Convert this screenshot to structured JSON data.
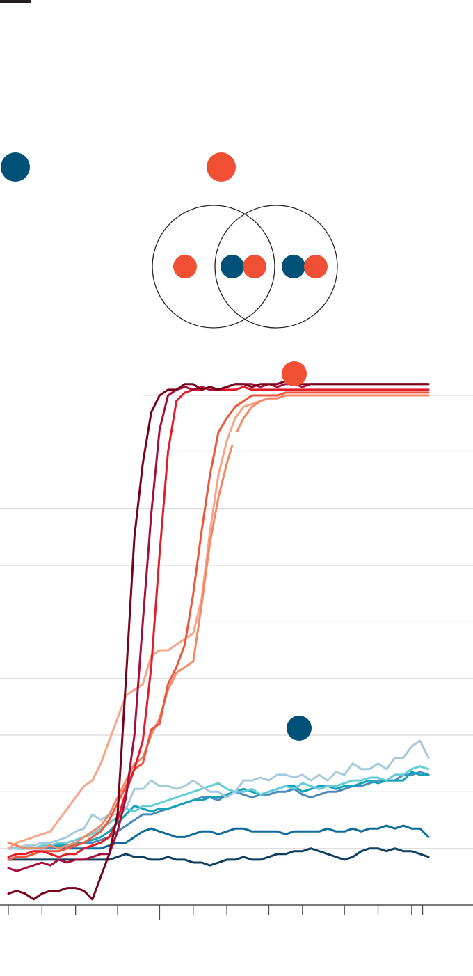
{
  "colors": {
    "blue_marker": "#005177",
    "red_marker": "#ef4f33",
    "rule": "#231f20",
    "grid": "#d9d9d9",
    "axis": "#4d4d4d",
    "venn_stroke": "#222222"
  },
  "chart_data": {
    "type": "line",
    "title": "",
    "xlabel": "",
    "ylabel": "",
    "grid": true,
    "legend": "none",
    "x": [
      0,
      1,
      2,
      3,
      4,
      5,
      6,
      7,
      8,
      9,
      10,
      11,
      12,
      13,
      14,
      15,
      16,
      17,
      18,
      19,
      20,
      21,
      22,
      23,
      24,
      25,
      26,
      27,
      28,
      29,
      30,
      31,
      32,
      33,
      34,
      35,
      36,
      37,
      38,
      39,
      40,
      41,
      42,
      43,
      44,
      45,
      46,
      47,
      48,
      49,
      50
    ],
    "ylim": [
      0,
      9
    ],
    "series": [
      {
        "color": "#7b001c",
        "values": [
          0.2,
          0.25,
          0.2,
          0.1,
          0.2,
          0.25,
          0.25,
          0.3,
          0.3,
          0.25,
          0.1,
          0.5,
          0.9,
          1.6,
          4,
          6.5,
          7.8,
          8.7,
          9.0,
          9.1,
          9.1,
          9.2,
          9.2,
          9.1,
          9.15,
          9.1,
          9.15,
          9.2,
          9.2,
          9.15,
          9.2,
          9.2,
          9.2,
          9.25,
          9.2,
          9.2,
          9.2,
          9.2,
          9.2,
          9.2,
          9.2,
          9.2,
          9.2,
          9.2,
          9.2,
          9.2,
          9.2,
          9.2,
          9.2,
          9.2,
          9.2
        ]
      },
      {
        "color": "#a50f3b",
        "values": [
          0.65,
          0.6,
          0.65,
          0.7,
          0.75,
          0.7,
          0.8,
          0.75,
          0.8,
          0.8,
          0.85,
          0.9,
          0.9,
          1.3,
          1.9,
          3.0,
          5.0,
          6.9,
          8.4,
          9.0,
          9.1,
          9.15,
          9.1,
          9.15,
          9.1,
          9.1,
          9.15,
          9.2,
          9.2,
          9.2,
          9.15,
          9.2,
          9.15,
          9.2,
          9.2,
          9.15,
          9.2,
          9.2,
          9.2,
          9.2,
          9.2,
          9.2,
          9.2,
          9.2,
          9.2,
          9.2,
          9.2,
          9.2,
          9.2,
          9.2,
          9.2
        ]
      },
      {
        "color": "#e31c2b",
        "values": [
          0.85,
          0.9,
          0.9,
          0.95,
          0.95,
          0.9,
          0.85,
          0.9,
          0.9,
          1.0,
          1.05,
          1.1,
          1.2,
          1.5,
          2.0,
          2.4,
          2.9,
          4.2,
          6.2,
          8.0,
          8.9,
          9.05,
          9.1,
          9.1,
          9.15,
          9.1,
          9.1,
          9.1,
          9.15,
          9.1,
          9.1,
          9.1,
          9.1,
          9.1,
          9.1,
          9.1,
          9.1,
          9.1,
          9.1,
          9.1,
          9.1,
          9.1,
          9.1,
          9.1,
          9.1,
          9.1,
          9.1,
          9.1,
          9.1,
          9.1,
          9.1
        ]
      },
      {
        "color": "#f0553c",
        "values": [
          0.8,
          0.85,
          0.85,
          0.9,
          0.95,
          0.95,
          0.95,
          1.0,
          1.05,
          1.1,
          1.2,
          1.3,
          1.5,
          1.8,
          2.1,
          2.4,
          2.5,
          3.1,
          3.2,
          3.9,
          4.2,
          4.6,
          5.5,
          6.6,
          7.6,
          8.35,
          8.6,
          8.8,
          8.9,
          9.0,
          9.0,
          9.0,
          9.0,
          9.05,
          9.05,
          9.05,
          9.05,
          9.05,
          9.05,
          9.05,
          9.05,
          9.05,
          9.05,
          9.05,
          9.05,
          9.05,
          9.05,
          9.05,
          9.05,
          9.05,
          9.05
        ]
      },
      {
        "color": "#f58766",
        "values": [
          1.1,
          1.05,
          1.0,
          1.0,
          1.0,
          1.05,
          1.0,
          1.05,
          1.1,
          1.2,
          1.3,
          1.4,
          1.6,
          1.9,
          2.2,
          2.5,
          2.6,
          3.0,
          3.3,
          3.8,
          4.1,
          4.2,
          4.3,
          5.3,
          6.4,
          7.2,
          7.8,
          8.3,
          8.6,
          8.8,
          8.9,
          8.95,
          8.95,
          9.0,
          9.0,
          9.0,
          9.0,
          9.0,
          9.0,
          9.0,
          9.0,
          9.0,
          9.0,
          9.0,
          9.0,
          9.0,
          9.0,
          9.0,
          9.0,
          9.0,
          9.0
        ]
      },
      {
        "color": "#f8a487",
        "values": [
          1.0,
          1.1,
          1.15,
          1.2,
          1.25,
          1.3,
          1.5,
          1.7,
          1.9,
          2.1,
          2.2,
          2.5,
          2.9,
          3.3,
          3.7,
          3.8,
          3.9,
          4.4,
          4.5,
          4.5,
          4.6,
          4.7,
          4.8,
          5.4,
          6.6,
          7.6,
          8.2,
          8.6,
          8.8,
          8.85,
          8.9,
          8.95,
          8.95,
          9.0,
          9.0,
          9.0,
          9.0,
          9.0,
          9.0,
          9.0,
          9.0,
          9.0,
          9.0,
          9.0,
          9.0,
          9.0,
          9.0,
          9.0,
          9.0,
          9.0,
          9.0
        ]
      },
      {
        "color": "#a7c9dd",
        "values": [
          1.0,
          1.0,
          1.05,
          1.05,
          1.1,
          1.1,
          1.15,
          1.2,
          1.3,
          1.35,
          1.6,
          1.5,
          1.6,
          1.6,
          1.7,
          2.05,
          2.05,
          2.2,
          2.1,
          2.1,
          2.05,
          2.1,
          2.2,
          2.1,
          2.0,
          2.0,
          1.9,
          2.0,
          2.2,
          2.2,
          2.25,
          2.2,
          2.3,
          2.3,
          2.25,
          2.3,
          2.2,
          2.3,
          2.2,
          2.35,
          2.3,
          2.5,
          2.4,
          2.4,
          2.5,
          2.4,
          2.6,
          2.6,
          2.8,
          2.9,
          2.6
        ]
      },
      {
        "color": "#66ccd8",
        "values": [
          1.0,
          1.0,
          1.0,
          1.0,
          1.05,
          1.05,
          1.1,
          1.1,
          1.15,
          1.2,
          1.25,
          1.35,
          1.45,
          1.55,
          1.7,
          1.65,
          1.75,
          1.75,
          1.8,
          1.85,
          1.9,
          1.95,
          2.0,
          2.05,
          2.1,
          2.15,
          2.05,
          2.0,
          2.0,
          2.05,
          1.95,
          2.0,
          2.05,
          2.1,
          2.05,
          2.15,
          2.1,
          2.05,
          2.1,
          2.1,
          2.15,
          2.2,
          2.2,
          2.25,
          2.25,
          2.2,
          2.3,
          2.3,
          2.4,
          2.45,
          2.4
        ]
      },
      {
        "color": "#14a3b6",
        "values": [
          1.0,
          1.0,
          1.0,
          1.0,
          1.0,
          1.05,
          1.05,
          1.05,
          1.1,
          1.1,
          1.15,
          1.2,
          1.3,
          1.45,
          1.6,
          1.75,
          1.7,
          1.65,
          1.7,
          1.7,
          1.75,
          1.8,
          1.85,
          1.85,
          1.9,
          1.9,
          1.95,
          2.0,
          2.05,
          2.0,
          1.95,
          2.0,
          2.05,
          2.1,
          2.1,
          2.0,
          2.05,
          2.1,
          2.1,
          2.05,
          2.1,
          2.1,
          2.15,
          2.2,
          2.15,
          2.2,
          2.2,
          2.2,
          2.35,
          2.3,
          2.3
        ]
      },
      {
        "color": "#4a8ab8",
        "values": [
          1.0,
          1.0,
          1.0,
          1.0,
          1.0,
          1.0,
          1.05,
          1.05,
          1.05,
          1.1,
          1.1,
          1.15,
          1.2,
          1.3,
          1.4,
          1.5,
          1.6,
          1.6,
          1.65,
          1.7,
          1.75,
          1.8,
          1.85,
          1.9,
          1.9,
          1.85,
          1.95,
          2.0,
          1.95,
          1.9,
          1.95,
          1.95,
          2.0,
          2.0,
          2.05,
          1.95,
          1.9,
          1.95,
          2.0,
          2.0,
          2.05,
          2.1,
          2.1,
          2.15,
          2.2,
          2.2,
          2.2,
          2.3,
          2.3,
          2.35,
          2.3
        ]
      },
      {
        "color": "#0e6b99",
        "values": [
          1.0,
          1.0,
          1.0,
          1.0,
          1.0,
          1.0,
          1.0,
          1.0,
          1.0,
          1.0,
          1.0,
          1.0,
          1.05,
          1.1,
          1.1,
          1.2,
          1.3,
          1.35,
          1.3,
          1.25,
          1.2,
          1.2,
          1.25,
          1.3,
          1.3,
          1.25,
          1.3,
          1.35,
          1.35,
          1.3,
          1.3,
          1.3,
          1.3,
          1.25,
          1.3,
          1.3,
          1.3,
          1.3,
          1.35,
          1.3,
          1.3,
          1.35,
          1.3,
          1.35,
          1.35,
          1.4,
          1.35,
          1.4,
          1.35,
          1.35,
          1.2
        ]
      },
      {
        "color": "#0d3f5e",
        "values": [
          0.8,
          0.8,
          0.8,
          0.8,
          0.8,
          0.8,
          0.8,
          0.8,
          0.8,
          0.8,
          0.8,
          0.8,
          0.8,
          0.85,
          0.9,
          0.85,
          0.85,
          0.8,
          0.8,
          0.85,
          0.8,
          0.8,
          0.75,
          0.75,
          0.7,
          0.75,
          0.8,
          0.8,
          0.85,
          0.8,
          0.8,
          0.85,
          0.9,
          0.9,
          0.95,
          0.95,
          1.0,
          0.95,
          0.9,
          0.85,
          0.8,
          0.85,
          0.95,
          1.0,
          1.0,
          0.95,
          1.0,
          0.95,
          0.95,
          0.9,
          0.85
        ]
      }
    ]
  }
}
